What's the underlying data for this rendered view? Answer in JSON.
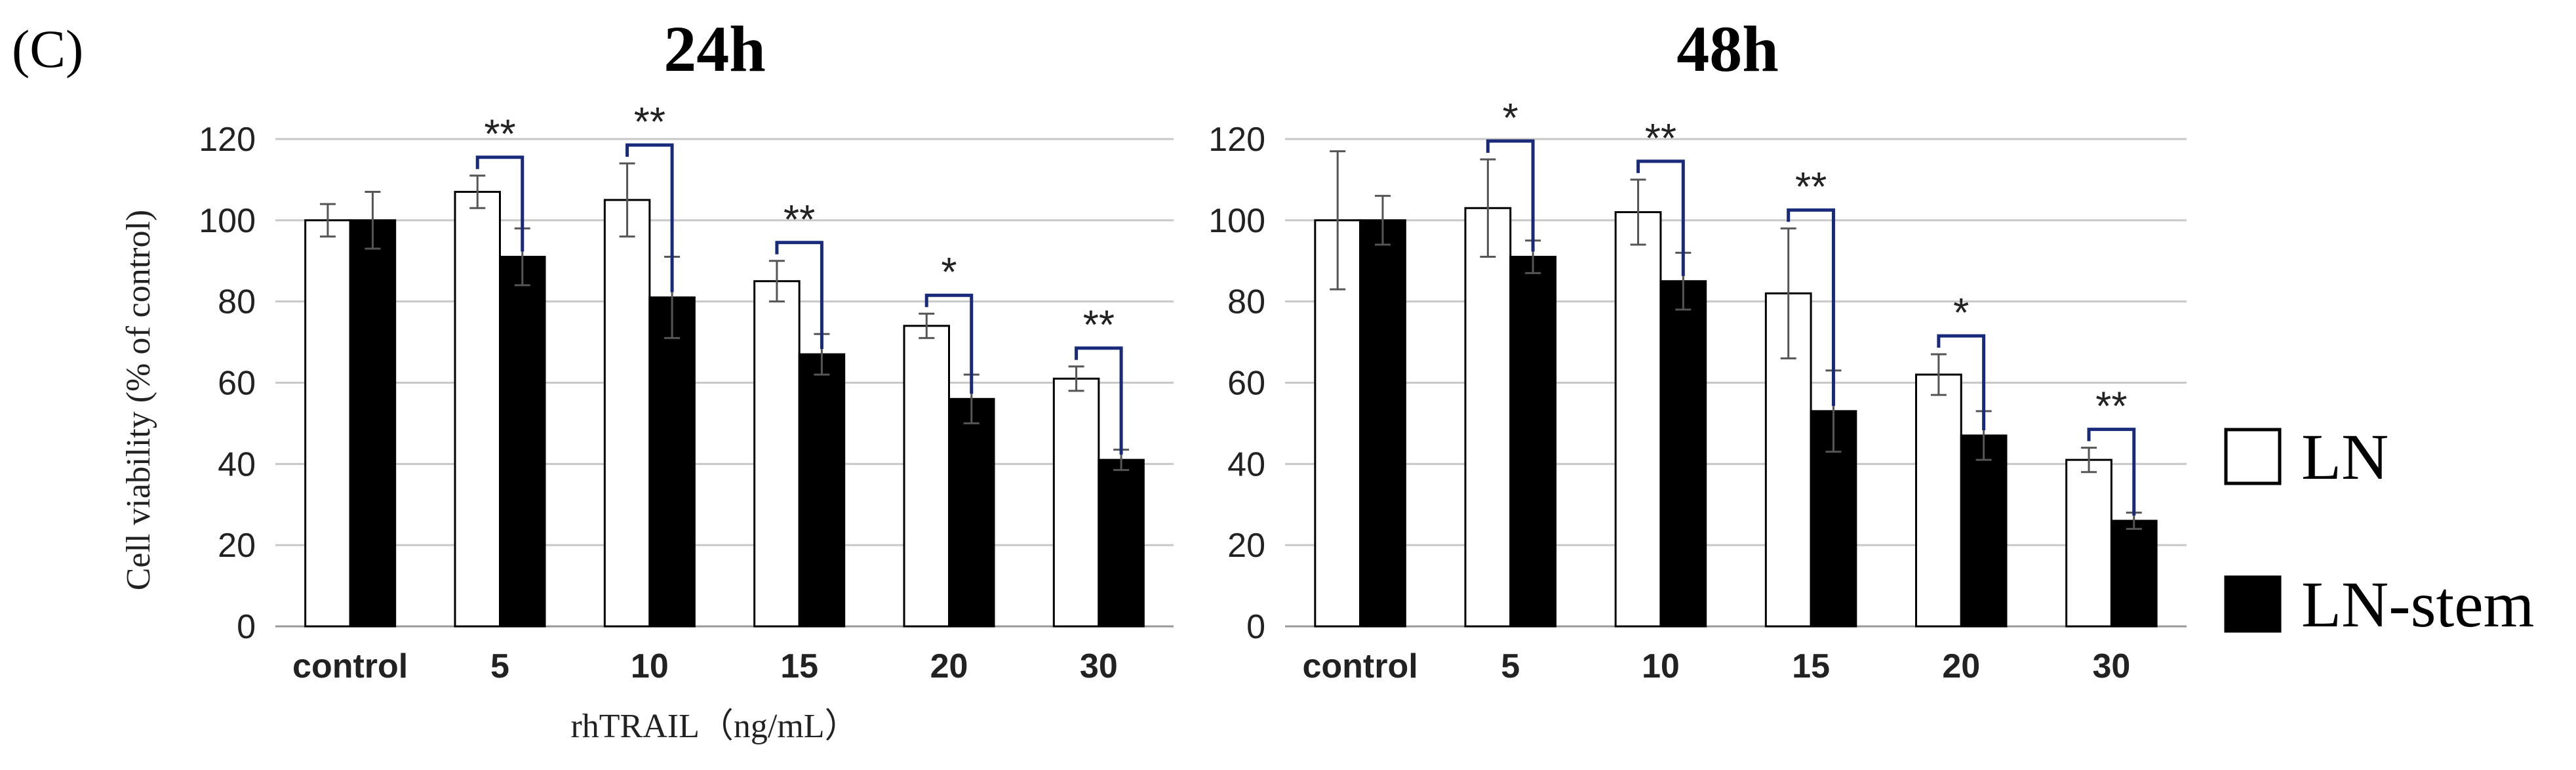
{
  "figure": {
    "panel_label": "(C)",
    "x_axis_label": "rhTRAIL（ng/mL）",
    "y_axis_label": "Cell viability (% of control)"
  },
  "legend": [
    {
      "name": "LN",
      "color": "#ffffff"
    },
    {
      "name": "LN-stem",
      "color": "#000000"
    }
  ],
  "chart_data": [
    {
      "type": "bar",
      "title": "24h",
      "categories": [
        "control",
        "5",
        "10",
        "15",
        "20",
        "30"
      ],
      "series": [
        {
          "name": "LN",
          "values": [
            100,
            107,
            105,
            85,
            74,
            61
          ],
          "errors": [
            4,
            4,
            9,
            5,
            3,
            3
          ]
        },
        {
          "name": "LN-stem",
          "values": [
            100,
            91,
            81,
            67,
            56,
            41
          ],
          "errors": [
            7,
            7,
            10,
            5,
            6,
            2.5
          ]
        }
      ],
      "significance": [
        "",
        "**",
        "**",
        "**",
        "*",
        "**"
      ],
      "ylim": [
        0,
        120
      ],
      "yticks": [
        0,
        20,
        40,
        60,
        80,
        100,
        120
      ],
      "grid": true
    },
    {
      "type": "bar",
      "title": "48h",
      "categories": [
        "control",
        "5",
        "10",
        "15",
        "20",
        "30"
      ],
      "series": [
        {
          "name": "LN",
          "values": [
            100,
            103,
            102,
            82,
            62,
            41
          ],
          "errors": [
            17,
            12,
            8,
            16,
            5,
            3
          ]
        },
        {
          "name": "LN-stem",
          "values": [
            100,
            91,
            85,
            53,
            47,
            26
          ],
          "errors": [
            6,
            4,
            7,
            10,
            6,
            2
          ]
        }
      ],
      "significance": [
        "",
        "*",
        "**",
        "**",
        "*",
        "**"
      ],
      "ylim": [
        0,
        120
      ],
      "yticks": [
        0,
        20,
        40,
        60,
        80,
        100,
        120
      ],
      "grid": true
    }
  ]
}
